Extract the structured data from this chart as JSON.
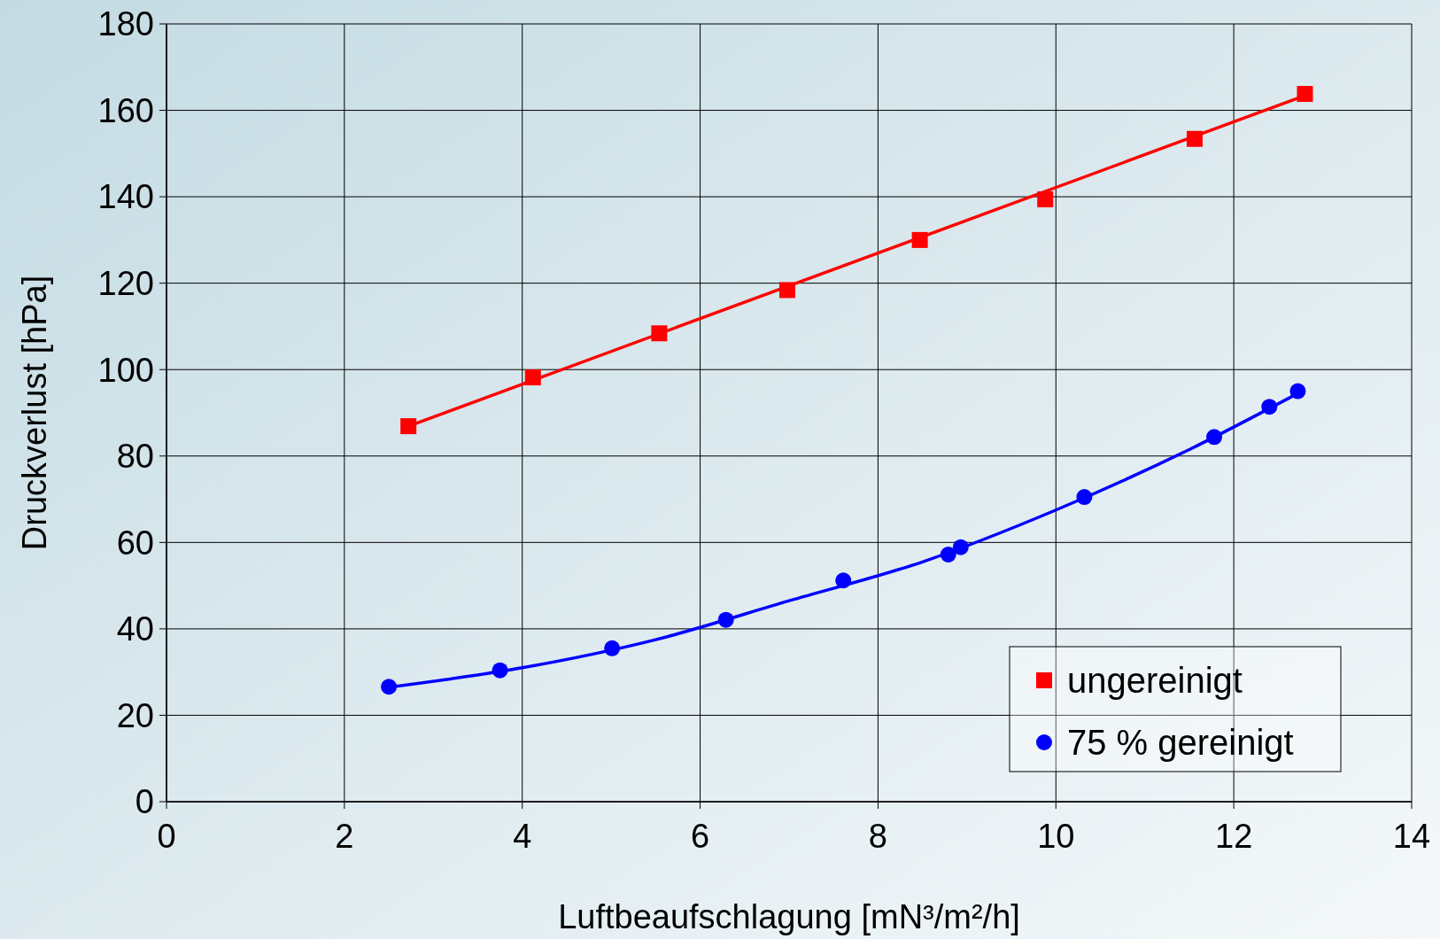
{
  "chart_data": {
    "type": "scatter",
    "xlabel": "Luftbeaufschlagung [mN³/m²/h]",
    "ylabel": "Druckverlust [hPa]",
    "xlim": [
      0,
      14
    ],
    "xticks": [
      0,
      2,
      4,
      6,
      8,
      10,
      12,
      14
    ],
    "ylim": [
      0,
      180
    ],
    "yticks": [
      0,
      20,
      40,
      60,
      80,
      100,
      120,
      140,
      160,
      180
    ],
    "grid": true,
    "legend": "bottom right",
    "series": [
      {
        "name": "ungereinigt",
        "marker": "square",
        "color": "#ff0000",
        "x": [
          2.72,
          4.12,
          5.54,
          6.98,
          8.47,
          9.88,
          11.56,
          12.8
        ],
        "values": [
          86.9,
          98.2,
          108.4,
          118.4,
          130,
          139.4,
          153.4,
          163.8
        ]
      },
      {
        "name": "75 % gereinigt",
        "marker": "circle",
        "color": "#0000ff",
        "x": [
          2.5,
          3.75,
          5.01,
          6.29,
          7.61,
          8.79,
          8.93,
          10.32,
          11.78,
          12.4,
          12.72
        ],
        "values": [
          26.6,
          30.4,
          35.5,
          42.1,
          51.2,
          57.2,
          58.9,
          70.5,
          84.4,
          91.4,
          95
        ]
      },
      {
        "type": "line",
        "color": "#ff0000",
        "x": [
          2.72,
          12.8
        ],
        "values": [
          86.9,
          163.4
        ]
      },
      {
        "type": "line",
        "color": "#0000ff",
        "x": [
          2.5,
          4,
          5.5,
          7,
          8.5,
          10,
          11.5,
          12.72
        ],
        "values": [
          26.5,
          31,
          37.5,
          46.5,
          55.5,
          67.5,
          81.5,
          94.5
        ]
      }
    ]
  }
}
